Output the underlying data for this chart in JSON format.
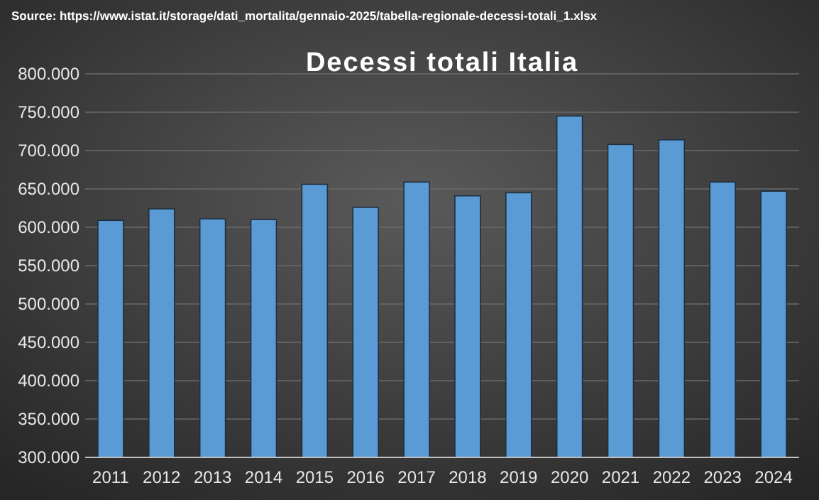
{
  "chart_data": {
    "type": "bar",
    "title": "Decessi totali Italia",
    "annotations": [
      "Source: https://www.istat.it/storage/dati_mortalita/gennaio-2025/tabella-regionale-decessi-totali_1.xlsx"
    ],
    "categories": [
      "2011",
      "2012",
      "2013",
      "2014",
      "2015",
      "2016",
      "2017",
      "2018",
      "2019",
      "2020",
      "2021",
      "2022",
      "2023",
      "2024"
    ],
    "values": [
      609000,
      624000,
      611000,
      610000,
      656000,
      626000,
      659000,
      641000,
      645000,
      745000,
      708000,
      714000,
      659000,
      647000
    ],
    "color": "#5b9bd5",
    "ylim": [
      300000,
      800000
    ],
    "yticks": [
      {
        "value": 300000,
        "label": "300.000"
      },
      {
        "value": 350000,
        "label": "350.000"
      },
      {
        "value": 400000,
        "label": "400.000"
      },
      {
        "value": 450000,
        "label": "450.000"
      },
      {
        "value": 500000,
        "label": "500.000"
      },
      {
        "value": 550000,
        "label": "550.000"
      },
      {
        "value": 600000,
        "label": "600.000"
      },
      {
        "value": 650000,
        "label": "650.000"
      },
      {
        "value": 700000,
        "label": "700.000"
      },
      {
        "value": 750000,
        "label": "750.000"
      },
      {
        "value": 800000,
        "label": "800.000"
      }
    ],
    "grid": "y"
  }
}
